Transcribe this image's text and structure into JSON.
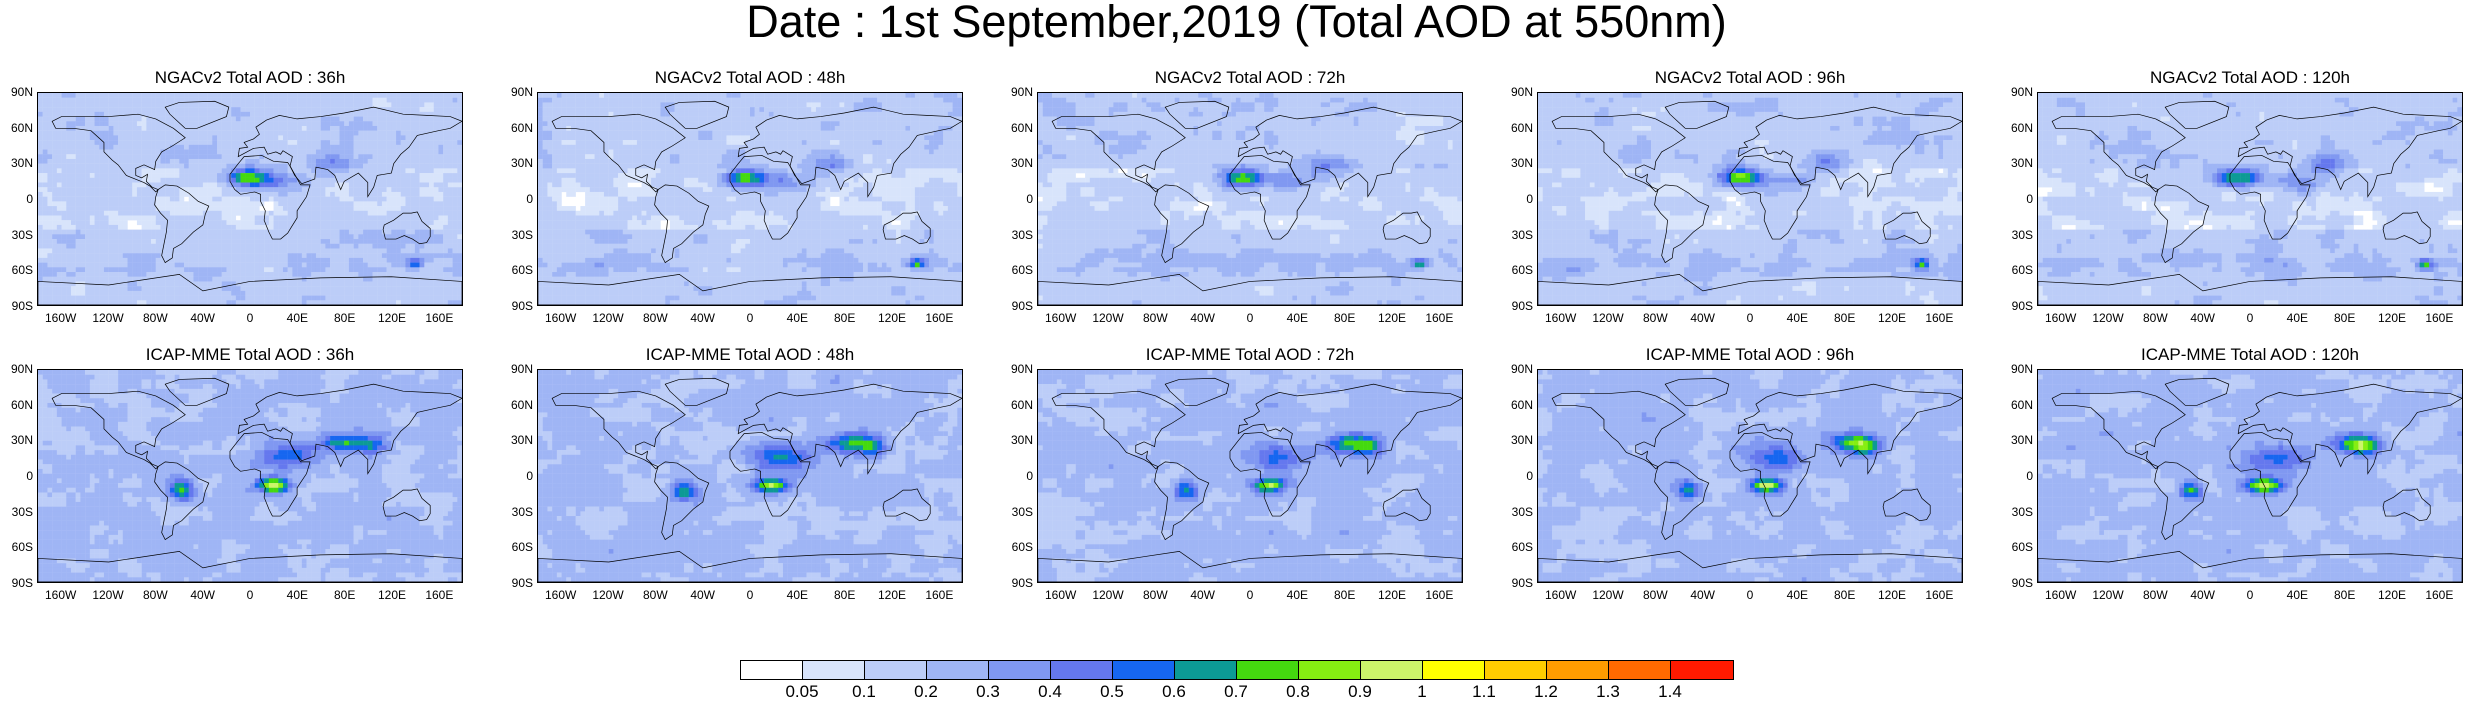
{
  "title": "Date : 1st September,2019 (Total AOD at 550nm)",
  "lat_labels": [
    "90N",
    "60N",
    "30N",
    "0",
    "30S",
    "60S",
    "90S"
  ],
  "lon_labels": [
    "160W",
    "120W",
    "80W",
    "40W",
    "0",
    "40E",
    "80E",
    "120E",
    "160E"
  ],
  "panels": [
    {
      "title": "NGACv2 Total AOD : 36h"
    },
    {
      "title": "NGACv2 Total AOD : 48h"
    },
    {
      "title": "NGACv2 Total AOD : 72h"
    },
    {
      "title": "NGACv2 Total AOD : 96h"
    },
    {
      "title": "NGACv2 Total AOD : 120h"
    },
    {
      "title": "ICAP-MME Total AOD : 36h"
    },
    {
      "title": "ICAP-MME Total AOD : 48h"
    },
    {
      "title": "ICAP-MME Total AOD : 72h"
    },
    {
      "title": "ICAP-MME Total AOD : 96h"
    },
    {
      "title": "ICAP-MME Total AOD : 120h"
    }
  ],
  "colorbar": {
    "colors": [
      "#ffffff",
      "#d8e4fb",
      "#bccdf8",
      "#9fb5f5",
      "#8098f1",
      "#6578ee",
      "#1666f0",
      "#0c9a95",
      "#44d90f",
      "#86ee12",
      "#ccf46a",
      "#ffff00",
      "#ffcc00",
      "#ff9c00",
      "#ff6a00",
      "#ff1a00"
    ],
    "labels": [
      "0.05",
      "0.1",
      "0.2",
      "0.3",
      "0.4",
      "0.5",
      "0.6",
      "0.7",
      "0.8",
      "0.9",
      "1",
      "1.1",
      "1.2",
      "1.3",
      "1.4"
    ]
  }
}
